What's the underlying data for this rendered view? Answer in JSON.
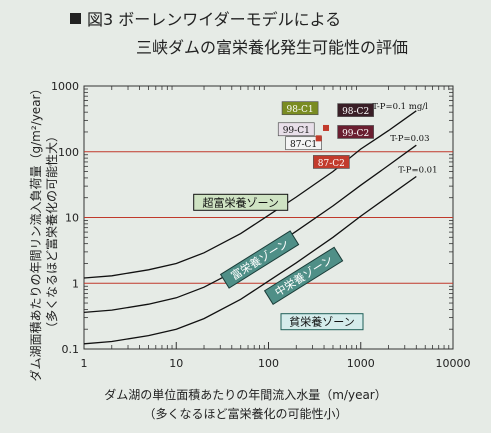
{
  "title_line1": "図3 ボーレンワイダーモデルによる",
  "title_line2": "三峡ダムの富栄養化発生可能性の評価",
  "y_label_line1": "ダム湖面積あたりの年間リン流入負荷量（g/m²/year）",
  "y_label_line2": "（多くなるほど富栄養化の可能性大）",
  "x_label_line1": "ダム湖の単位面積あたりの年間流入水量（m/year）",
  "x_label_line2": "（多くなるほど富栄養化の可能性小）",
  "colors": {
    "background": "#e6ebe6",
    "major_grid": "#c0392b",
    "axis": "#333333",
    "curve": "#111111",
    "label_green": "#cfe3c3",
    "label_teal": "#4f8f87",
    "label_light": "#d5eceb"
  },
  "chart_data": {
    "type": "line",
    "x_scale": "log",
    "y_scale": "log",
    "xlim": [
      1,
      10000
    ],
    "ylim": [
      0.1,
      1000
    ],
    "x_ticks": [
      "1",
      "10",
      "100",
      "1000",
      "10000"
    ],
    "y_ticks": [
      "0.1",
      "1",
      "10",
      "100",
      "1000"
    ],
    "grid": "major-y",
    "series": [
      {
        "name": "T-P=0.1 mg/l",
        "x": [
          1,
          2,
          5,
          10,
          20,
          50,
          100,
          200,
          500,
          1000,
          2000,
          4000
        ],
        "y": [
          1.2,
          1.3,
          1.6,
          2.0,
          2.9,
          5.7,
          10.8,
          20.5,
          50,
          110,
          210,
          420
        ]
      },
      {
        "name": "T-P=0.03",
        "x": [
          1,
          2,
          5,
          10,
          20,
          50,
          100,
          200,
          500,
          1000,
          2000,
          4000
        ],
        "y": [
          0.36,
          0.39,
          0.48,
          0.6,
          0.87,
          1.7,
          3.2,
          6.2,
          15,
          31,
          62,
          126
        ]
      },
      {
        "name": "T-P=0.01",
        "x": [
          1,
          2,
          5,
          10,
          20,
          50,
          100,
          200,
          500,
          1000,
          2000,
          4000
        ],
        "y": [
          0.12,
          0.13,
          0.16,
          0.2,
          0.29,
          0.57,
          1.08,
          2.05,
          5.0,
          10.5,
          21,
          42
        ]
      }
    ],
    "zones": [
      {
        "label": "超富栄養ゾーン",
        "x": 50,
        "y": 17,
        "angle": 0,
        "style": "green"
      },
      {
        "label": "富栄養ゾーン",
        "x": 80,
        "y": 2.3,
        "angle": -32,
        "style": "teal"
      },
      {
        "label": "中栄養ゾーン",
        "x": 240,
        "y": 1.3,
        "angle": -32,
        "style": "teal"
      },
      {
        "label": "貧栄養ゾーン",
        "x": 380,
        "y": 0.26,
        "angle": 0,
        "style": "light"
      }
    ],
    "points": [
      {
        "label": "98-C1",
        "x": 220,
        "y": 460,
        "color": "#7a8c22"
      },
      {
        "label": "98-C2",
        "x": 880,
        "y": 430,
        "color": "#3a1f27"
      },
      {
        "label": "99-C1",
        "x": 200,
        "y": 220,
        "color": "#e8dfe9"
      },
      {
        "label": "99-C2",
        "x": 880,
        "y": 200,
        "color": "#6a1e30"
      },
      {
        "label": "87-C1",
        "x": 240,
        "y": 135,
        "color": "#f4f4f4"
      },
      {
        "label": "87-C2",
        "x": 480,
        "y": 70,
        "color": "#c23b2c"
      }
    ]
  }
}
